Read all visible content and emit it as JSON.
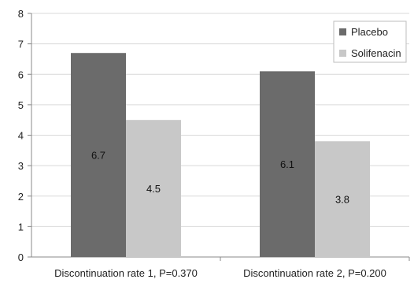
{
  "chart_data": {
    "type": "bar",
    "categories": [
      "Discontinuation rate 1, P=0.370",
      "Discontinuation rate 2, P=0.200"
    ],
    "series": [
      {
        "name": "Placebo",
        "values": [
          6.7,
          6.1
        ],
        "color": "#6b6b6b",
        "labels": [
          "6.7",
          "6.1"
        ]
      },
      {
        "name": "Solifenacin",
        "values": [
          4.5,
          3.8
        ],
        "color": "#c8c8c8",
        "labels": [
          "4.5",
          "3.8"
        ]
      }
    ],
    "ylim": [
      0,
      8
    ],
    "yticks": [
      "0",
      "1",
      "2",
      "3",
      "4",
      "5",
      "6",
      "7",
      "8"
    ],
    "grid": true,
    "legend_position": "top-right",
    "gridline_color": "#d9d9d9"
  }
}
